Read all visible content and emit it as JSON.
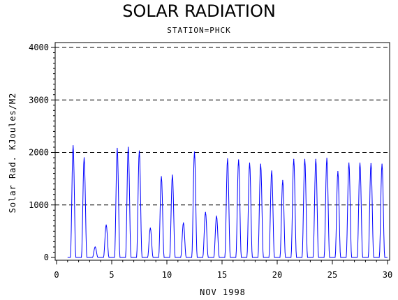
{
  "chart_data": {
    "type": "line",
    "title": "SOLAR RADIATION",
    "subtitle": "STATION=PHCK",
    "xlabel": "NOV 1998",
    "ylabel": "Solar Rad. KJoules/M2",
    "xlim": [
      0,
      30
    ],
    "ylim": [
      0,
      4000
    ],
    "x_ticks": [
      "0",
      "5",
      "10",
      "15",
      "20",
      "25",
      "30"
    ],
    "y_ticks": [
      "0",
      "1000",
      "2000",
      "3000",
      "4000"
    ],
    "grid": "dashed horizontal",
    "series": [
      {
        "color": "#0000ff",
        "daily_peaks": [
          {
            "day": 1,
            "x": 1.5,
            "y": 2130
          },
          {
            "day": 2,
            "x": 2.5,
            "y": 1900
          },
          {
            "day": 3,
            "x": 3.5,
            "y": 200
          },
          {
            "day": 4,
            "x": 4.5,
            "y": 620
          },
          {
            "day": 5,
            "x": 5.5,
            "y": 2080
          },
          {
            "day": 6,
            "x": 6.5,
            "y": 2100
          },
          {
            "day": 7,
            "x": 7.5,
            "y": 2030
          },
          {
            "day": 8,
            "x": 8.5,
            "y": 560
          },
          {
            "day": 9,
            "x": 9.5,
            "y": 1540
          },
          {
            "day": 10,
            "x": 10.5,
            "y": 1570
          },
          {
            "day": 11,
            "x": 11.5,
            "y": 660
          },
          {
            "day": 12,
            "x": 12.5,
            "y": 2010
          },
          {
            "day": 13,
            "x": 13.5,
            "y": 860
          },
          {
            "day": 14,
            "x": 14.5,
            "y": 790
          },
          {
            "day": 15,
            "x": 15.5,
            "y": 1880
          },
          {
            "day": 16,
            "x": 16.5,
            "y": 1860
          },
          {
            "day": 17,
            "x": 17.5,
            "y": 1800
          },
          {
            "day": 18,
            "x": 18.5,
            "y": 1780
          },
          {
            "day": 19,
            "x": 19.5,
            "y": 1650
          },
          {
            "day": 20,
            "x": 20.5,
            "y": 1470
          },
          {
            "day": 21,
            "x": 21.5,
            "y": 1870
          },
          {
            "day": 22,
            "x": 22.5,
            "y": 1870
          },
          {
            "day": 23,
            "x": 23.5,
            "y": 1870
          },
          {
            "day": 24,
            "x": 24.5,
            "y": 1890
          },
          {
            "day": 25,
            "x": 25.5,
            "y": 1640
          },
          {
            "day": 26,
            "x": 26.5,
            "y": 1800
          },
          {
            "day": 27,
            "x": 27.5,
            "y": 1800
          },
          {
            "day": 28,
            "x": 28.5,
            "y": 1790
          },
          {
            "day": 29,
            "x": 29.5,
            "y": 1780
          }
        ]
      }
    ]
  }
}
